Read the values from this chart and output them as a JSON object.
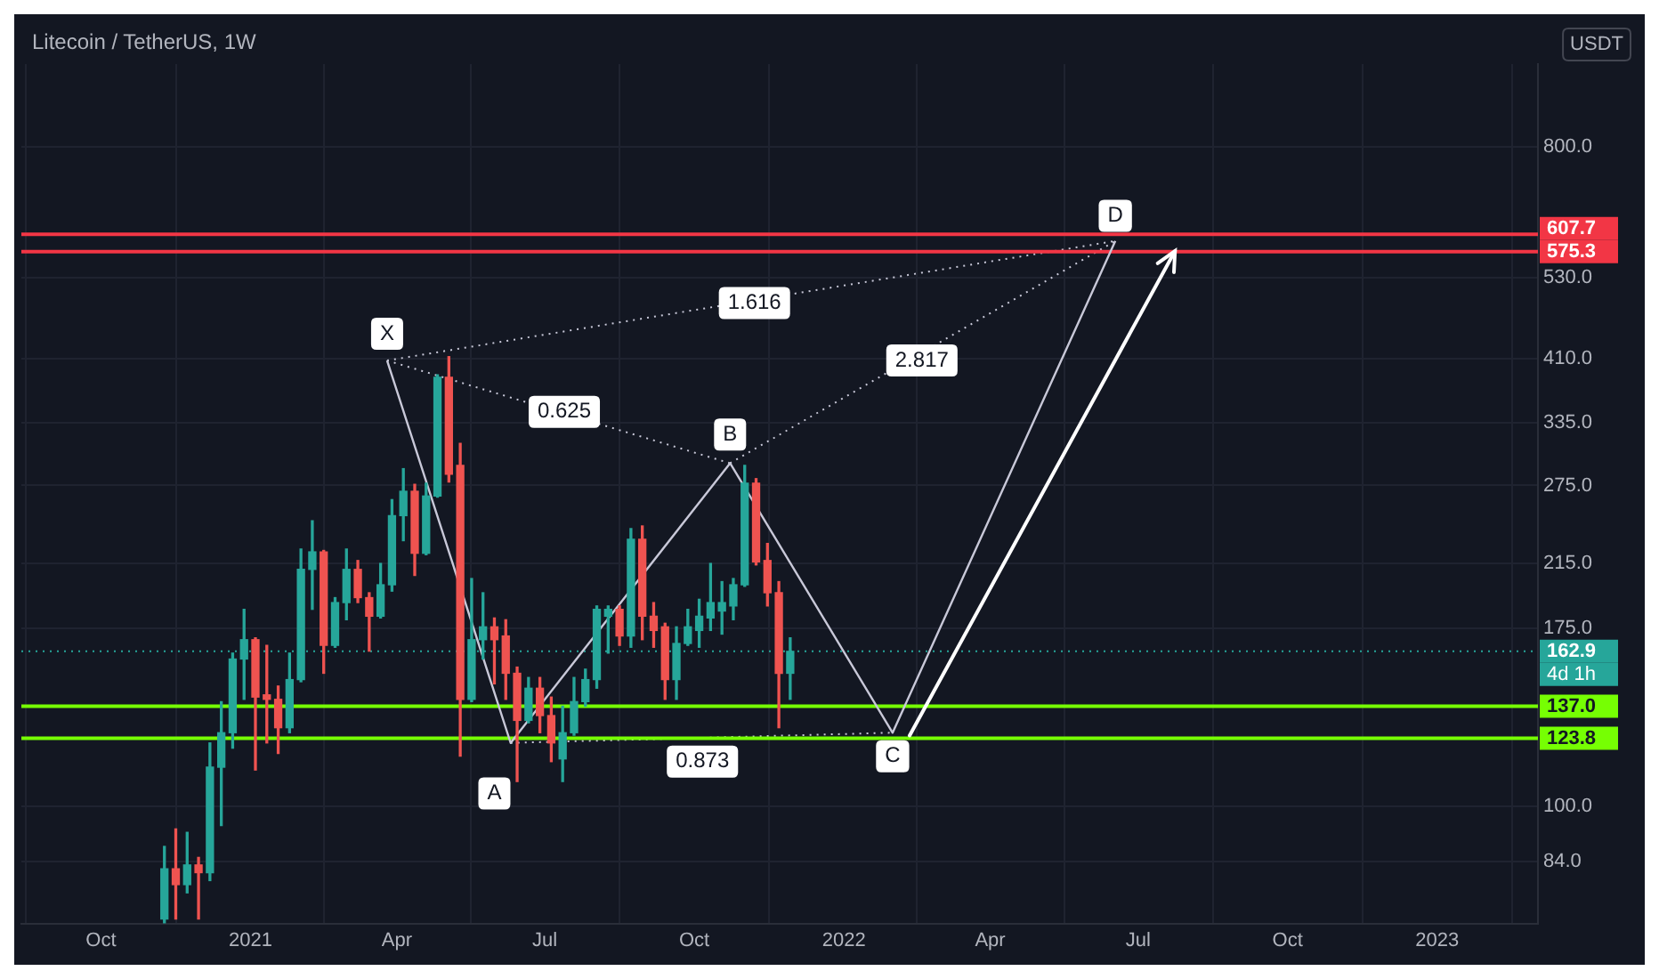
{
  "chart_data": {
    "type": "candlestick",
    "title": "Litecoin / TetherUS, 1W",
    "ylabel": "USDT",
    "x": [
      "2020-11-09",
      "2020-11-16",
      "2020-11-23",
      "2020-11-30",
      "2020-12-07",
      "2020-12-14",
      "2020-12-21",
      "2020-12-28",
      "2021-01-04",
      "2021-01-11",
      "2021-01-18",
      "2021-01-25",
      "2021-02-01",
      "2021-02-08",
      "2021-02-15",
      "2021-02-22",
      "2021-03-01",
      "2021-03-08",
      "2021-03-15",
      "2021-03-22",
      "2021-03-29",
      "2021-04-05",
      "2021-04-12",
      "2021-04-19",
      "2021-04-26",
      "2021-05-03",
      "2021-05-10",
      "2021-05-17",
      "2021-05-24",
      "2021-05-31",
      "2021-06-07",
      "2021-06-14",
      "2021-06-21",
      "2021-06-28",
      "2021-07-05",
      "2021-07-12",
      "2021-07-19",
      "2021-07-26",
      "2021-08-02",
      "2021-08-09",
      "2021-08-16",
      "2021-08-23",
      "2021-08-30",
      "2021-09-06",
      "2021-09-13",
      "2021-09-20",
      "2021-09-27",
      "2021-10-04",
      "2021-10-11",
      "2021-10-18",
      "2021-10-25",
      "2021-11-01",
      "2021-11-08",
      "2021-11-15",
      "2021-11-22",
      "2021-11-29"
    ],
    "ohlc": [
      [
        70,
        88,
        69,
        82
      ],
      [
        82,
        93,
        70,
        78
      ],
      [
        78,
        92,
        76,
        83
      ],
      [
        83,
        85,
        70,
        81
      ],
      [
        81,
        122,
        79,
        113
      ],
      [
        113,
        139,
        94,
        126
      ],
      [
        126,
        162,
        120,
        159
      ],
      [
        159,
        186,
        140,
        169
      ],
      [
        169,
        170,
        112,
        141
      ],
      [
        142,
        166,
        122,
        140
      ],
      [
        140,
        146,
        118,
        128
      ],
      [
        128,
        162,
        126,
        149
      ],
      [
        149,
        225,
        148,
        211
      ],
      [
        211,
        246,
        186,
        223
      ],
      [
        223,
        224,
        152,
        166
      ],
      [
        166,
        193,
        165,
        190
      ],
      [
        190,
        225,
        180,
        211
      ],
      [
        211,
        217,
        190,
        193
      ],
      [
        193,
        196,
        163,
        182
      ],
      [
        182,
        215,
        181,
        201
      ],
      [
        201,
        263,
        197,
        250
      ],
      [
        250,
        290,
        231,
        270
      ],
      [
        270,
        276,
        207,
        222
      ],
      [
        222,
        277,
        221,
        266
      ],
      [
        266,
        390,
        265,
        387
      ],
      [
        387,
        413,
        278,
        285
      ],
      [
        293,
        314,
        117,
        140
      ],
      [
        140,
        205,
        139,
        169
      ],
      [
        169,
        196,
        159,
        176
      ],
      [
        176,
        181,
        147,
        169
      ],
      [
        171,
        180,
        140,
        152
      ],
      [
        152,
        155,
        108,
        131
      ],
      [
        131,
        150,
        130,
        145
      ],
      [
        145,
        150,
        126,
        133
      ],
      [
        133,
        141,
        115,
        122
      ],
      [
        116,
        137,
        108,
        126
      ],
      [
        126,
        150,
        125,
        139
      ],
      [
        139,
        154,
        137,
        149
      ],
      [
        149,
        188,
        145,
        186
      ],
      [
        182,
        188,
        162,
        186
      ],
      [
        186,
        188,
        166,
        171
      ],
      [
        171,
        240,
        165,
        232
      ],
      [
        232,
        242,
        169,
        182
      ],
      [
        182,
        190,
        165,
        174
      ],
      [
        176,
        178,
        140,
        149
      ],
      [
        149,
        176,
        140,
        167
      ],
      [
        167,
        186,
        166,
        176
      ],
      [
        174,
        192,
        165,
        182
      ],
      [
        181,
        215,
        174,
        190
      ],
      [
        185,
        203,
        172,
        190
      ],
      [
        188,
        205,
        180,
        201
      ],
      [
        201,
        293,
        200,
        277
      ],
      [
        277,
        281,
        214,
        216
      ],
      [
        217,
        229,
        188,
        196
      ],
      [
        196,
        203,
        128,
        152
      ],
      [
        152,
        170,
        140,
        162.9
      ]
    ],
    "colors": [
      "#26a69a",
      "#ef5350",
      "#26a69a",
      "#ef5350",
      "#26a69a",
      "#26a69a",
      "#26a69a",
      "#26a69a",
      "#ef5350",
      "#ef5350",
      "#ef5350",
      "#26a69a",
      "#26a69a",
      "#26a69a",
      "#ef5350",
      "#26a69a",
      "#26a69a",
      "#ef5350",
      "#ef5350",
      "#26a69a",
      "#26a69a",
      "#26a69a",
      "#ef5350",
      "#26a69a",
      "#26a69a",
      "#ef5350",
      "#ef5350",
      "#26a69a",
      "#26a69a",
      "#ef5350",
      "#ef5350",
      "#ef5350",
      "#26a69a",
      "#ef5350",
      "#ef5350",
      "#26a69a",
      "#26a69a",
      "#26a69a",
      "#26a69a",
      "#26a69a",
      "#ef5350",
      "#26a69a",
      "#ef5350",
      "#ef5350",
      "#ef5350",
      "#26a69a",
      "#26a69a",
      "#26a69a",
      "#26a69a",
      "#26a69a",
      "#26a69a",
      "#26a69a",
      "#ef5350",
      "#ef5350",
      "#ef5350",
      "#26a69a"
    ],
    "series": [
      {
        "type": "line",
        "x": [
          "2021-03-26",
          "2021-06-10",
          "2021-10-23",
          "2022-01-31",
          "2022-06-17"
        ],
        "values": [
          408,
          122,
          295,
          126,
          595
        ],
        "color": "#c8c8d8"
      }
    ],
    "log": true,
    "grid": true,
    "legend": false,
    "xlim": [
      "2020-08-13",
      "2023-03-04"
    ],
    "xticks": [
      {
        "value": "2020-10-01",
        "label": "Oct"
      },
      {
        "value": "2021-01-01",
        "label": "2021"
      },
      {
        "value": "2021-04-01",
        "label": "Apr"
      },
      {
        "value": "2021-07-01",
        "label": "Jul"
      },
      {
        "value": "2021-10-01",
        "label": "Oct"
      },
      {
        "value": "2022-01-01",
        "label": "2022"
      },
      {
        "value": "2022-04-01",
        "label": "Apr"
      },
      {
        "value": "2022-07-01",
        "label": "Jul"
      },
      {
        "value": "2022-10-01",
        "label": "Oct"
      },
      {
        "value": "2023-01-01",
        "label": "2023"
      }
    ],
    "ylim": [
      69,
      1040
    ],
    "yticks": [
      {
        "value": 84,
        "label": "84.0"
      },
      {
        "value": 100,
        "label": "100.0"
      },
      {
        "value": 175,
        "label": "175.0"
      },
      {
        "value": 215,
        "label": "215.0"
      },
      {
        "value": 275,
        "label": "275.0"
      },
      {
        "value": 335,
        "label": "335.0"
      },
      {
        "value": 410,
        "label": "410.0"
      },
      {
        "value": 530,
        "label": "530.0"
      },
      {
        "value": 800,
        "label": "800.0"
      }
    ],
    "ref_lines": [
      {
        "axis": "y",
        "value": 607.7,
        "label": "607.7",
        "color": "#f23645"
      },
      {
        "axis": "y",
        "value": 575.3,
        "label": "575.3",
        "color": "#f23645"
      },
      {
        "axis": "y",
        "value": 162.9,
        "label": "162.9",
        "color": "#26a69a",
        "line_style": "dotted"
      },
      {
        "axis": "y",
        "value": 137.0,
        "label": "137.0",
        "color": "#76ff03"
      },
      {
        "axis": "y",
        "value": 123.8,
        "label": "123.8",
        "color": "#76ff03"
      }
    ],
    "annotations": [
      "4d 1h",
      {
        "text": "X",
        "x": "2021-03-26",
        "y": 444
      },
      {
        "text": "A",
        "x": "2021-05-31",
        "y": 104
      },
      {
        "text": "B",
        "x": "2021-10-23",
        "y": 323
      },
      {
        "text": "C",
        "x": "2022-01-31",
        "y": 117
      },
      {
        "text": "D",
        "x": "2022-06-17",
        "y": 644
      },
      {
        "text": "1.616",
        "x": "2021-11-07",
        "y": 489
      },
      {
        "text": "0.625",
        "x": "2021-07-13",
        "y": 347
      },
      {
        "text": "2.817",
        "x": "2022-02-18",
        "y": 408
      },
      {
        "text": "0.873",
        "x": "2021-10-06",
        "y": 115
      }
    ]
  }
}
